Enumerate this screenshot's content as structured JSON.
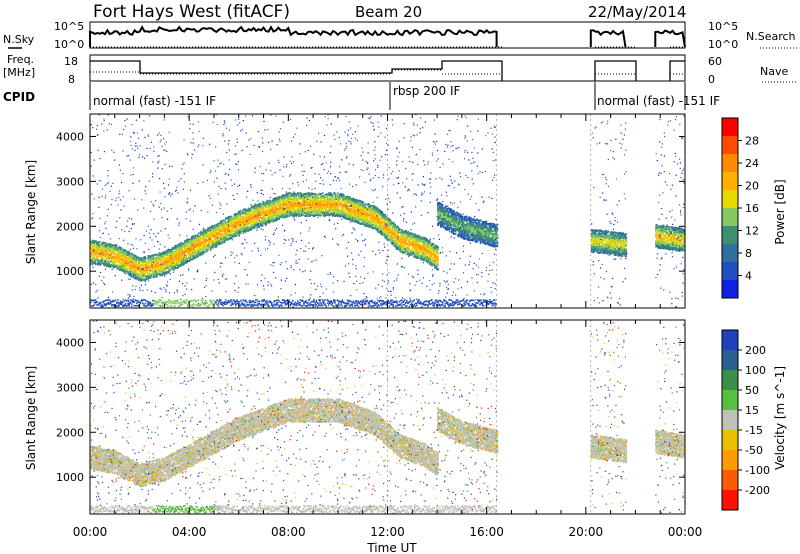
{
  "header": {
    "station": "Fort Hays West (fitACF)",
    "beam": "Beam 20",
    "date": "22/May/2014"
  },
  "top_panels": {
    "nsky": {
      "label": "N.Sky",
      "ticks": [
        "10^5",
        "10^0"
      ],
      "right_ticks": [
        "10^5",
        "10^0"
      ],
      "right_label": "N.Search"
    },
    "freq": {
      "label_line1": "Freq.",
      "label_line2": "[MHz]",
      "ticks": [
        "18",
        "8"
      ],
      "right_ticks": [
        "60",
        "0"
      ],
      "right_label": "Nave"
    },
    "cpid": {
      "label": "CPID",
      "modes": [
        "normal (fast) -151 IF",
        "rbsp 200 IF",
        "normal (fast) -151 IF"
      ]
    }
  },
  "power_colorbar": {
    "label": "Power [dB]",
    "ticks": [
      "28",
      "24",
      "20",
      "16",
      "12",
      "8",
      "4"
    ],
    "colors": [
      "#ff0000",
      "#ff4a00",
      "#ff8a00",
      "#ffb000",
      "#e6d900",
      "#88c860",
      "#3a9070",
      "#3070a0",
      "#2050c0",
      "#1020e0"
    ]
  },
  "velocity_colorbar": {
    "label": "Velocity [m s^-1]",
    "ticks": [
      "200",
      "100",
      "50",
      "15",
      "-15",
      "-50",
      "-100",
      "-200"
    ],
    "colors": [
      "#2040c0",
      "#2a6090",
      "#3a9048",
      "#58c040",
      "#c0c0b8",
      "#e8c000",
      "#ff9a00",
      "#ff5a00",
      "#ff1000"
    ]
  },
  "axes": {
    "ylabel": "Slant Range [km]",
    "yticks": [
      "4000",
      "3000",
      "2000",
      "1000"
    ],
    "xlabel": "Time UT",
    "xticks": [
      "00:00",
      "04:00",
      "08:00",
      "12:00",
      "16:00",
      "20:00",
      "00:00"
    ]
  },
  "chart_data": [
    {
      "type": "heatmap",
      "name": "Power",
      "x_range_hours": [
        0,
        24
      ],
      "y_range_km": [
        180,
        4500
      ],
      "data_coverage_hours": [
        [
          0,
          16.4
        ],
        [
          20.2,
          21.6
        ],
        [
          22.8,
          24
        ]
      ],
      "echo_bands": [
        {
          "t": [
            0.0,
            1.0,
            2.0,
            3.0,
            4.0,
            6.0,
            8.0,
            10.0,
            11.5,
            12.5,
            13.5,
            14.0
          ],
          "range_km": [
            1450,
            1350,
            1050,
            1200,
            1500,
            2100,
            2500,
            2500,
            2200,
            1700,
            1500,
            1300
          ],
          "power_db": 22
        },
        {
          "t": [
            14.0,
            15.0,
            16.4
          ],
          "range_km": [
            2300,
            2000,
            1800
          ],
          "power_db": 14
        },
        {
          "t": [
            20.2,
            21.6
          ],
          "range_km": [
            1700,
            1600
          ],
          "power_db": 18
        },
        {
          "t": [
            22.8,
            24.0
          ],
          "range_km": [
            1800,
            1700
          ],
          "power_db": 20
        }
      ]
    },
    {
      "type": "heatmap",
      "name": "Velocity",
      "x_range_hours": [
        0,
        24
      ],
      "y_range_km": [
        180,
        4500
      ],
      "data_coverage_hours": [
        [
          0,
          16.4
        ],
        [
          20.2,
          21.6
        ],
        [
          22.8,
          24
        ]
      ],
      "dominant_velocity_m_s": 0
    }
  ]
}
